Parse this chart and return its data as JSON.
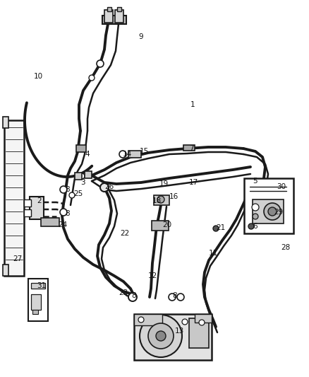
{
  "bg_color": "#ffffff",
  "lc": "#1a1a1a",
  "fig_w": 4.38,
  "fig_h": 5.33,
  "dpi": 100,
  "labels": [
    [
      "1",
      270,
      148
    ],
    [
      "2",
      52,
      284
    ],
    [
      "3",
      114,
      258
    ],
    [
      "4",
      120,
      218
    ],
    [
      "5",
      358,
      256
    ],
    [
      "6",
      358,
      320
    ],
    [
      "7",
      268,
      210
    ],
    [
      "8",
      92,
      268
    ],
    [
      "8",
      92,
      302
    ],
    [
      "8",
      186,
      418
    ],
    [
      "8",
      244,
      418
    ],
    [
      "9",
      196,
      52
    ],
    [
      "10",
      48,
      108
    ],
    [
      "11",
      296,
      358
    ],
    [
      "12",
      210,
      390
    ],
    [
      "13",
      248,
      468
    ],
    [
      "14",
      174,
      218
    ],
    [
      "15",
      198,
      214
    ],
    [
      "16",
      240,
      278
    ],
    [
      "17",
      268,
      258
    ],
    [
      "18",
      216,
      284
    ],
    [
      "19",
      226,
      260
    ],
    [
      "20",
      230,
      318
    ],
    [
      "21",
      306,
      322
    ],
    [
      "22",
      170,
      330
    ],
    [
      "23",
      168,
      414
    ],
    [
      "24",
      82,
      318
    ],
    [
      "25",
      104,
      274
    ],
    [
      "26",
      148,
      264
    ],
    [
      "27",
      18,
      366
    ],
    [
      "28",
      398,
      350
    ],
    [
      "29",
      388,
      300
    ],
    [
      "30",
      392,
      264
    ],
    [
      "31",
      52,
      404
    ]
  ]
}
